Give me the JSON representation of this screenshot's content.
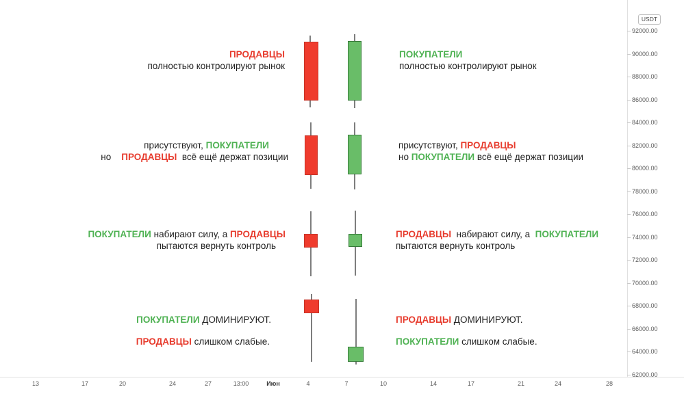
{
  "colors": {
    "bearish_fill": "#ef3b2d",
    "bearish_border": "#c63327",
    "bullish_fill": "#69bd68",
    "bullish_border": "#357a38",
    "wick": "#7d7d7d",
    "red_text": "#e73c2e",
    "green_text": "#4fb253",
    "black_text": "#222222",
    "axis_text": "#5b5b5b",
    "axis_line": "#e0e0e0"
  },
  "chart_data": {
    "type": "candlestick",
    "title": "",
    "y_axis": {
      "unit": "USDT",
      "ticks": [
        92000,
        90000,
        88000,
        86000,
        84000,
        82000,
        80000,
        78000,
        76000,
        74000,
        72000,
        70000,
        68000,
        66000,
        64000,
        62000
      ],
      "tick_labels": [
        "92000.00",
        "90000.00",
        "88000.00",
        "86000.00",
        "84000.00",
        "82000.00",
        "80000.00",
        "78000.00",
        "76000.00",
        "74000.00",
        "72000.00",
        "70000.00",
        "68000.00",
        "66000.00",
        "64000.00",
        "62000.00"
      ],
      "range": [
        62000,
        92000
      ]
    },
    "x_axis": {
      "tick_labels": [
        "13",
        "17",
        "20",
        "24",
        "27",
        "13:00",
        "Июн",
        "4",
        "7",
        "10",
        "14",
        "17",
        "21",
        "24",
        "28"
      ]
    },
    "grid": false,
    "candles": [
      {
        "row": 1,
        "side": "left",
        "direction": "bearish",
        "open": 91000,
        "high": 91600,
        "low": 85300,
        "close": 85900
      },
      {
        "row": 1,
        "side": "right",
        "direction": "bullish",
        "open": 85900,
        "high": 91700,
        "low": 85200,
        "close": 91100
      },
      {
        "row": 2,
        "side": "left",
        "direction": "bearish",
        "open": 82850,
        "high": 84000,
        "low": 78200,
        "close": 79400
      },
      {
        "row": 2,
        "side": "right",
        "direction": "bullish",
        "open": 79450,
        "high": 84000,
        "low": 78150,
        "close": 82900
      },
      {
        "row": 3,
        "side": "left",
        "direction": "bearish",
        "open": 74250,
        "high": 76200,
        "low": 70550,
        "close": 73050
      },
      {
        "row": 3,
        "side": "right",
        "direction": "bullish",
        "open": 73100,
        "high": 76250,
        "low": 70600,
        "close": 74250
      },
      {
        "row": 4,
        "side": "left",
        "direction": "bearish",
        "open": 68550,
        "high": 69000,
        "low": 63050,
        "close": 67300
      },
      {
        "row": 4,
        "side": "right",
        "direction": "bullish",
        "open": 63050,
        "high": 68550,
        "low": 62800,
        "close": 64400
      }
    ]
  },
  "annotations": {
    "rows": [
      {
        "left": {
          "lines": [
            [
              {
                "text": "ПРОДАВЦЫ",
                "color": "red"
              }
            ],
            [
              {
                "text": "полностью контролируют рынок",
                "color": "black"
              }
            ]
          ]
        },
        "right": {
          "lines": [
            [
              {
                "text": "ПОКУПАТЕЛИ",
                "color": "green"
              }
            ],
            [
              {
                "text": "полностью контролируют рынок",
                "color": "black"
              }
            ]
          ]
        }
      },
      {
        "left": {
          "lines": [
            [
              {
                "text": "присутствуют,",
                "color": "black"
              },
              {
                "text": " ПОКУПАТЕЛИ",
                "color": "green"
              }
            ],
            [
              {
                "text": "но    ",
                "color": "black"
              },
              {
                "text": "ПРОДАВЦЫ",
                "color": "red"
              },
              {
                "text": "  всё ещё держат позиции",
                "color": "black"
              }
            ]
          ]
        },
        "right": {
          "lines": [
            [
              {
                "text": "присутствуют, ",
                "color": "black"
              },
              {
                "text": "ПРОДАВЦЫ",
                "color": "red"
              }
            ],
            [
              {
                "text": "но ",
                "color": "black"
              },
              {
                "text": "ПОКУПАТЕЛИ",
                "color": "green"
              },
              {
                "text": " всё ещё держат позиции",
                "color": "black"
              }
            ]
          ]
        }
      },
      {
        "left": {
          "lines": [
            [
              {
                "text": "ПОКУПАТЕЛИ",
                "color": "green"
              },
              {
                "text": " набирают силу, а ",
                "color": "black"
              },
              {
                "text": "ПРОДАВЦЫ",
                "color": "red"
              }
            ],
            [
              {
                "text": "пытаются вернуть контроль",
                "color": "black"
              }
            ]
          ]
        },
        "right": {
          "lines": [
            [
              {
                "text": "ПРОДАВЦЫ",
                "color": "red"
              },
              {
                "text": "  набирают силу, а  ",
                "color": "black"
              },
              {
                "text": "ПОКУПАТЕЛИ",
                "color": "green"
              }
            ],
            [
              {
                "text": "пытаются вернуть контроль",
                "color": "black"
              }
            ]
          ]
        }
      },
      {
        "left": {
          "lines": [
            [
              {
                "text": "ПОКУПАТЕЛИ",
                "color": "green"
              },
              {
                "text": " ДОМИНИРУЮТ.",
                "color": "black"
              }
            ],
            [
              {
                "text": "ПРОДАВЦЫ",
                "color": "red"
              },
              {
                "text": " слишком слабые.",
                "color": "black"
              }
            ]
          ]
        },
        "right": {
          "lines": [
            [
              {
                "text": "ПРОДАВЦЫ",
                "color": "red"
              },
              {
                "text": " ДОМИНИРУЮТ.",
                "color": "black"
              }
            ],
            [
              {
                "text": "ПОКУПАТЕЛИ",
                "color": "green"
              },
              {
                "text": " слишком слабые.",
                "color": "black"
              }
            ]
          ]
        }
      }
    ]
  }
}
